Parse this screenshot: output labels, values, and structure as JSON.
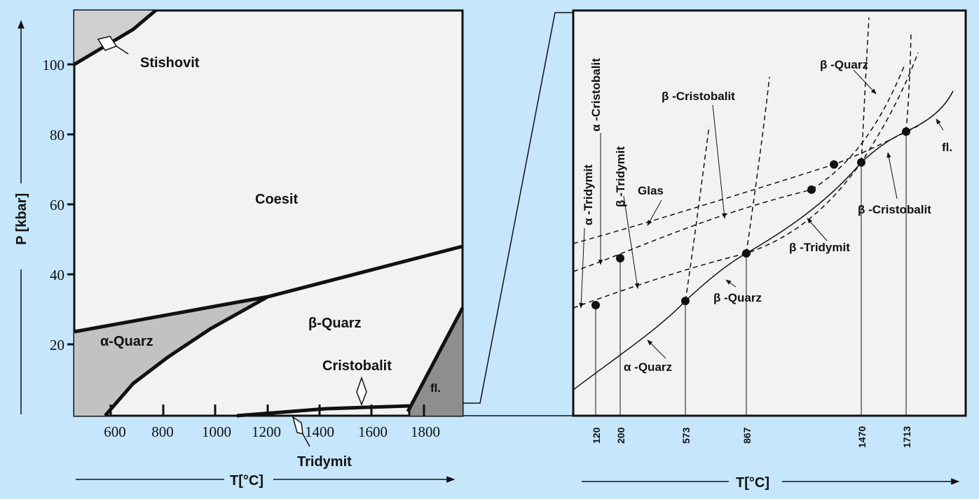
{
  "left": {
    "y_axis_label": "P [kbar]",
    "x_axis_label": "T[°C]",
    "y_ticks": [
      "20",
      "40",
      "60",
      "80",
      "100"
    ],
    "x_ticks": [
      "600",
      "800",
      "1000",
      "1200",
      "1400",
      "1600",
      "1800"
    ],
    "regions": {
      "stishovit": "Stishovit",
      "coesit": "Coesit",
      "alpha_quarz": "α-Quarz",
      "beta_quarz": "β-Quarz",
      "cristobalit": "Cristobalit",
      "tridymit": "Tridymit",
      "fl": "fl."
    }
  },
  "right": {
    "x_axis_label": "T[°C]",
    "x_ticks": [
      "120",
      "200",
      "573",
      "867",
      "1470",
      "1713"
    ],
    "labels": {
      "alpha_tridymit": "α -Tridymit",
      "alpha_cristobalit": "α -Cristobalit",
      "beta_tridymit_top": "β -Tridymit",
      "glas": "Glas",
      "beta_cristobalit_top": "β -Cristobalit",
      "beta_quarz_top": "β -Quarz",
      "fl": "fl.",
      "beta_cristobalit_right": "β -Cristobalit",
      "beta_tridymit_mid": "β -Tridymit",
      "beta_quarz_mid": "β -Quarz",
      "alpha_quarz": "α -Quarz"
    }
  },
  "colors": {
    "background": "#c6e6fb",
    "panel": "#f2f2f2",
    "light_gray": "#cfcfcf",
    "mid_gray": "#c2c2c2",
    "dark_gray": "#8e8e8e",
    "ink": "#111111"
  }
}
